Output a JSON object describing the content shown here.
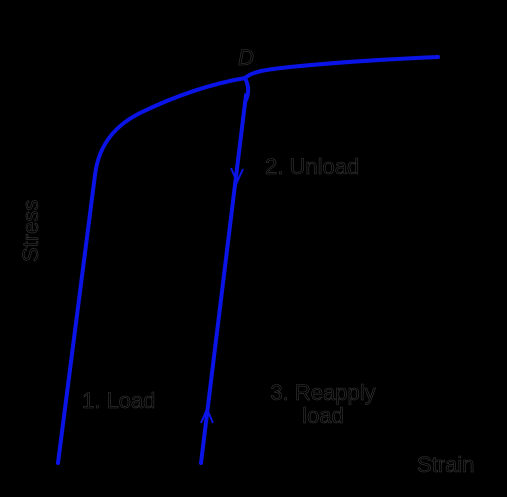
{
  "labels": {
    "point": "D",
    "unload": "2. Unload",
    "y_axis": "Stress",
    "load": "1. Load",
    "reapply": [
      "3. Reapply",
      "load"
    ],
    "x_axis": "Strain"
  }
}
